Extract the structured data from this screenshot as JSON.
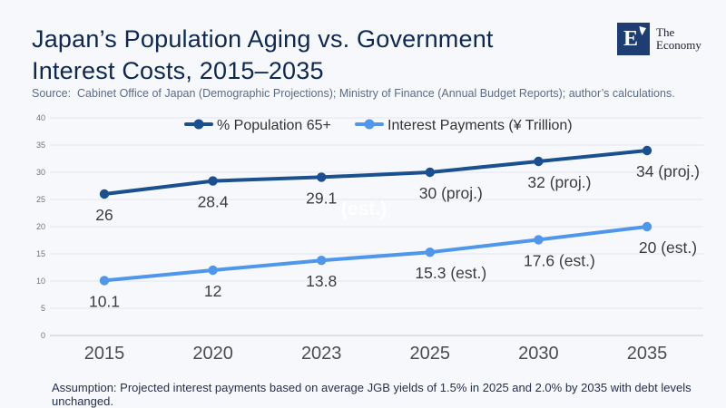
{
  "header": {
    "title_line1": "Japan’s Population Aging vs. Government",
    "title_line2": "Interest Costs, 2015–2035",
    "source": "Source:  Cabinet Office of Japan (Demographic Projections); Ministry of Finance (Annual Budget Reports); author’s calculations."
  },
  "logo": {
    "letter": "E",
    "name_line1": "The",
    "name_line2": "Economy",
    "box_color": "#1e3e73"
  },
  "chart_data": {
    "type": "line",
    "title": "Japan’s Population Aging vs. Government Interest Costs, 2015–2035",
    "categories": [
      "2015",
      "2020",
      "2023",
      "2025",
      "2030",
      "2035"
    ],
    "series": [
      {
        "name": "% Population 65+",
        "color": "#1a5090",
        "values": [
          26,
          28.4,
          29.1,
          30,
          32,
          34
        ],
        "labels": [
          "26",
          "28.4",
          "29.1",
          "30 (proj.)",
          "32 (proj.)",
          "34 (proj.)"
        ]
      },
      {
        "name": "Interest Payments (¥ Trillion)",
        "color": "#4e97ec",
        "values": [
          10.1,
          12,
          13.8,
          15.3,
          17.6,
          20
        ],
        "labels": [
          "10.1",
          "12",
          "13.8",
          "15.3 (est.)",
          "17.6 (est.)",
          "20 (est.)"
        ]
      }
    ],
    "ylim": [
      0,
      40
    ],
    "yticks": [
      0,
      5,
      10,
      15,
      20,
      25,
      30,
      35,
      40
    ],
    "grid": true,
    "legend_position": "top-center",
    "watermark": "(est.)",
    "xlabel": "",
    "ylabel": ""
  },
  "footer": {
    "assumption": "Assumption: Projected interest payments based on average JGB yields of 1.5% in 2025 and 2.0% by 2035 with debt levels unchanged."
  }
}
